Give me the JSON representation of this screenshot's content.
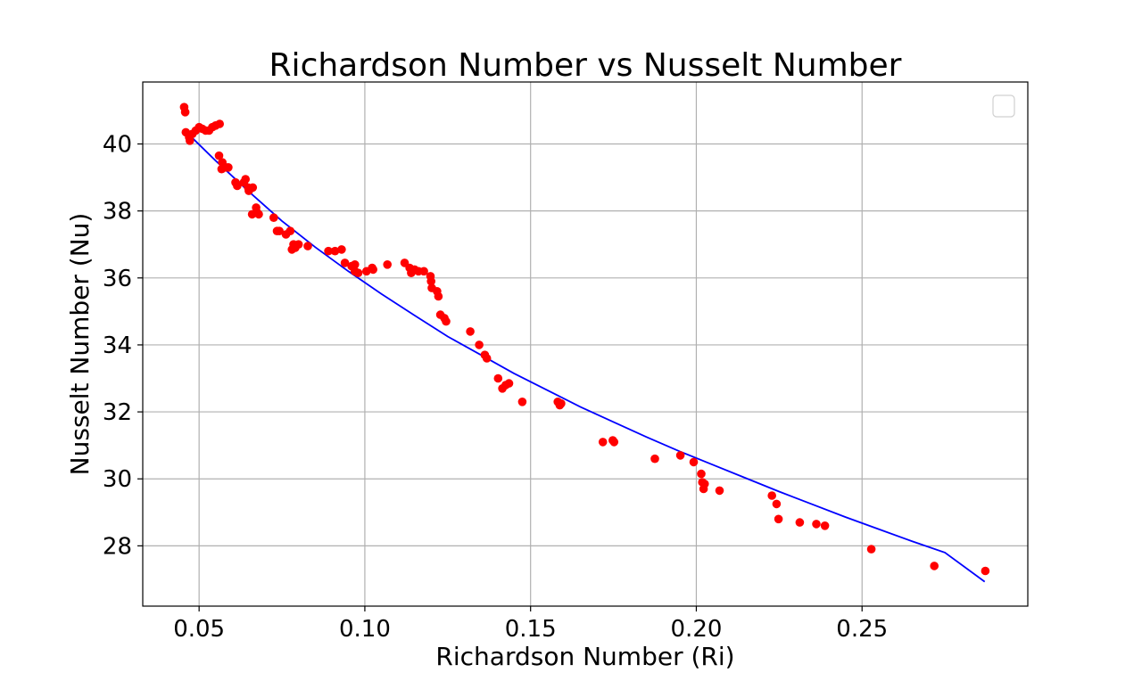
{
  "chart_data": {
    "type": "scatter",
    "title": "Richardson Number vs Nusselt Number",
    "xlabel": "Richardson Number (Ri)",
    "ylabel": "Nusselt Number (Nu)",
    "xlim": [
      0.033,
      0.3
    ],
    "ylim": [
      26.2,
      41.85
    ],
    "x_ticks": [
      0.05,
      0.1,
      0.15,
      0.2,
      0.25
    ],
    "x_tick_labels": [
      "0.05",
      "0.10",
      "0.15",
      "0.20",
      "0.25"
    ],
    "y_ticks": [
      28,
      30,
      32,
      34,
      36,
      38,
      40
    ],
    "y_tick_labels": [
      "28",
      "30",
      "32",
      "34",
      "36",
      "38",
      "40"
    ],
    "grid": true,
    "legend": "top-right",
    "colors": {
      "points": "#ff0000",
      "fit": "#0000ff",
      "grid": "#b0b0b0"
    },
    "series": [
      {
        "kind": "points",
        "points": [
          [
            0.0455,
            41.1
          ],
          [
            0.0458,
            40.95
          ],
          [
            0.046,
            40.35
          ],
          [
            0.047,
            40.2
          ],
          [
            0.0472,
            40.1
          ],
          [
            0.048,
            40.3
          ],
          [
            0.049,
            40.4
          ],
          [
            0.05,
            40.5
          ],
          [
            0.051,
            40.45
          ],
          [
            0.052,
            40.4
          ],
          [
            0.053,
            40.4
          ],
          [
            0.054,
            40.5
          ],
          [
            0.055,
            40.55
          ],
          [
            0.0562,
            40.6
          ],
          [
            0.056,
            39.65
          ],
          [
            0.057,
            39.45
          ],
          [
            0.0568,
            39.25
          ],
          [
            0.058,
            39.3
          ],
          [
            0.0588,
            39.3
          ],
          [
            0.061,
            38.85
          ],
          [
            0.0615,
            38.75
          ],
          [
            0.0635,
            38.85
          ],
          [
            0.064,
            38.95
          ],
          [
            0.0648,
            38.7
          ],
          [
            0.065,
            38.6
          ],
          [
            0.0662,
            38.7
          ],
          [
            0.066,
            37.9
          ],
          [
            0.0672,
            38.1
          ],
          [
            0.0675,
            37.95
          ],
          [
            0.068,
            37.9
          ],
          [
            0.0725,
            37.8
          ],
          [
            0.0735,
            37.4
          ],
          [
            0.0742,
            37.4
          ],
          [
            0.0762,
            37.3
          ],
          [
            0.0775,
            37.4
          ],
          [
            0.078,
            36.85
          ],
          [
            0.0785,
            37.0
          ],
          [
            0.079,
            36.9
          ],
          [
            0.08,
            37.0
          ],
          [
            0.0828,
            36.95
          ],
          [
            0.089,
            36.8
          ],
          [
            0.091,
            36.8
          ],
          [
            0.093,
            36.85
          ],
          [
            0.094,
            36.45
          ],
          [
            0.096,
            36.35
          ],
          [
            0.097,
            36.2
          ],
          [
            0.097,
            36.4
          ],
          [
            0.098,
            36.15
          ],
          [
            0.1005,
            36.2
          ],
          [
            0.1022,
            36.3
          ],
          [
            0.1025,
            36.25
          ],
          [
            0.1068,
            36.4
          ],
          [
            0.112,
            36.45
          ],
          [
            0.1135,
            36.3
          ],
          [
            0.114,
            36.15
          ],
          [
            0.115,
            36.25
          ],
          [
            0.1162,
            36.2
          ],
          [
            0.1178,
            36.2
          ],
          [
            0.1198,
            36.05
          ],
          [
            0.12,
            35.9
          ],
          [
            0.1202,
            35.7
          ],
          [
            0.1218,
            35.6
          ],
          [
            0.1222,
            35.45
          ],
          [
            0.1228,
            34.9
          ],
          [
            0.124,
            34.8
          ],
          [
            0.1245,
            34.7
          ],
          [
            0.1318,
            34.4
          ],
          [
            0.1345,
            34.0
          ],
          [
            0.1362,
            33.7
          ],
          [
            0.1368,
            33.6
          ],
          [
            0.1402,
            33.0
          ],
          [
            0.1415,
            32.7
          ],
          [
            0.1425,
            32.8
          ],
          [
            0.1435,
            32.85
          ],
          [
            0.1475,
            32.3
          ],
          [
            0.1582,
            32.3
          ],
          [
            0.1588,
            32.2
          ],
          [
            0.1592,
            32.25
          ],
          [
            0.1718,
            31.1
          ],
          [
            0.1748,
            31.15
          ],
          [
            0.1752,
            31.1
          ],
          [
            0.1875,
            30.6
          ],
          [
            0.1952,
            30.7
          ],
          [
            0.1992,
            30.5
          ],
          [
            0.2015,
            30.15
          ],
          [
            0.2018,
            29.9
          ],
          [
            0.2022,
            29.7
          ],
          [
            0.2025,
            29.85
          ],
          [
            0.207,
            29.65
          ],
          [
            0.2228,
            29.5
          ],
          [
            0.2242,
            29.25
          ],
          [
            0.2248,
            28.8
          ],
          [
            0.2312,
            28.7
          ],
          [
            0.2362,
            28.65
          ],
          [
            0.2388,
            28.6
          ],
          [
            0.2528,
            27.9
          ],
          [
            0.2718,
            27.4
          ],
          [
            0.2872,
            27.25
          ]
        ]
      },
      {
        "kind": "fit-line",
        "points": [
          [
            0.046,
            40.37
          ],
          [
            0.055,
            39.5
          ],
          [
            0.065,
            38.58
          ],
          [
            0.075,
            37.7
          ],
          [
            0.085,
            36.92
          ],
          [
            0.095,
            36.2
          ],
          [
            0.105,
            35.52
          ],
          [
            0.115,
            34.88
          ],
          [
            0.125,
            34.25
          ],
          [
            0.135,
            33.7
          ],
          [
            0.145,
            33.15
          ],
          [
            0.155,
            32.65
          ],
          [
            0.165,
            32.15
          ],
          [
            0.175,
            31.7
          ],
          [
            0.185,
            31.25
          ],
          [
            0.195,
            30.82
          ],
          [
            0.205,
            30.42
          ],
          [
            0.215,
            30.02
          ],
          [
            0.225,
            29.62
          ],
          [
            0.235,
            29.24
          ],
          [
            0.245,
            28.86
          ],
          [
            0.255,
            28.5
          ],
          [
            0.265,
            28.14
          ],
          [
            0.275,
            27.8
          ],
          [
            0.287,
            26.93
          ]
        ]
      }
    ]
  }
}
